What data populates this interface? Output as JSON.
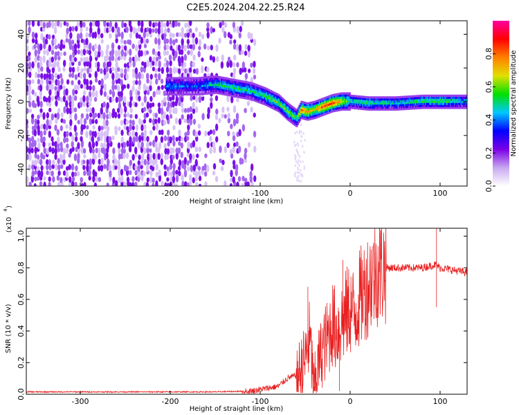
{
  "title": "C2E5.2024.204.22.25.R24",
  "chart_data": [
    {
      "type": "heatmap",
      "xlabel": "Height of straight line (km)",
      "ylabel": "Frequency (Hz)",
      "xlim": [
        -360,
        130
      ],
      "ylim": [
        -50,
        48
      ],
      "x_ticks": [
        -300,
        -200,
        -100,
        0,
        100
      ],
      "y_ticks": [
        -40,
        -20,
        0,
        20,
        40
      ],
      "colorbar": {
        "label": "Normalized spectral amplitude",
        "range": [
          0,
          1
        ],
        "ticks": [
          0.0,
          0.2,
          0.4,
          0.6,
          0.8
        ],
        "colormap": [
          "#ffffff",
          "#c8a8f0",
          "#7a00e6",
          "#0000ff",
          "#00c8ff",
          "#00e000",
          "#e0e000",
          "#ff8000",
          "#ff0000",
          "#ff00a0"
        ]
      },
      "noise_region_x": [
        -360,
        -105
      ],
      "ridge": {
        "x": [
          -205,
          -190,
          -170,
          -150,
          -130,
          -110,
          -95,
          -80,
          -70,
          -60,
          -55,
          -48,
          -40,
          -30,
          -20,
          -10,
          0,
          20,
          50,
          80,
          100,
          130
        ],
        "freq": [
          10,
          10,
          10,
          11,
          9,
          7,
          4,
          0,
          -5,
          -9,
          -4,
          -5,
          -4,
          -2,
          0,
          1,
          1,
          0,
          0,
          1,
          1,
          1
        ],
        "amplitude": [
          0.45,
          0.4,
          0.4,
          0.5,
          0.55,
          0.5,
          0.55,
          0.6,
          0.6,
          0.55,
          0.8,
          0.75,
          0.7,
          0.85,
          0.85,
          0.7,
          0.5,
          0.55,
          0.5,
          0.55,
          0.6,
          0.45
        ]
      }
    },
    {
      "type": "line",
      "xlabel": "Height of straight line (km)",
      "ylabel": "SNR (10 * v/v)",
      "scale_label": "(x10",
      "scale_exp": "4",
      "xlim": [
        -360,
        130
      ],
      "ylim": [
        0,
        1.05
      ],
      "x_ticks": [
        -300,
        -200,
        -100,
        0,
        100
      ],
      "y_ticks": [
        "0.0",
        "0.2",
        "0.4",
        "0.6",
        "0.8",
        "1.0"
      ],
      "color": "#e82020",
      "series": [
        {
          "x": [
            -360,
            -250,
            -150,
            -110,
            -80,
            -70,
            -60,
            -55,
            -50,
            -45,
            -40,
            -35,
            -30,
            -25,
            -20,
            -15,
            -10,
            -5,
            0,
            5,
            10,
            15,
            20,
            25,
            30,
            40,
            60,
            80,
            95,
            100,
            110,
            130
          ],
          "y": [
            0.015,
            0.015,
            0.015,
            0.02,
            0.05,
            0.1,
            0.12,
            0.15,
            0.22,
            0.35,
            0.05,
            0.2,
            0.3,
            0.35,
            0.45,
            0.4,
            0.45,
            0.5,
            0.55,
            0.5,
            0.6,
            0.65,
            0.7,
            0.75,
            0.78,
            0.8,
            0.8,
            0.8,
            0.82,
            0.8,
            0.79,
            0.77
          ]
        }
      ],
      "spikes": [
        {
          "x": -47,
          "y": 0.68
        },
        {
          "x": -40,
          "y": 0.02
        },
        {
          "x": -12,
          "y": 0.02
        },
        {
          "x": -8,
          "y": 0.85
        },
        {
          "x": 12,
          "y": 0.87
        },
        {
          "x": 96,
          "y": 1.05
        },
        {
          "x": 96,
          "y": 0.55
        }
      ]
    }
  ]
}
